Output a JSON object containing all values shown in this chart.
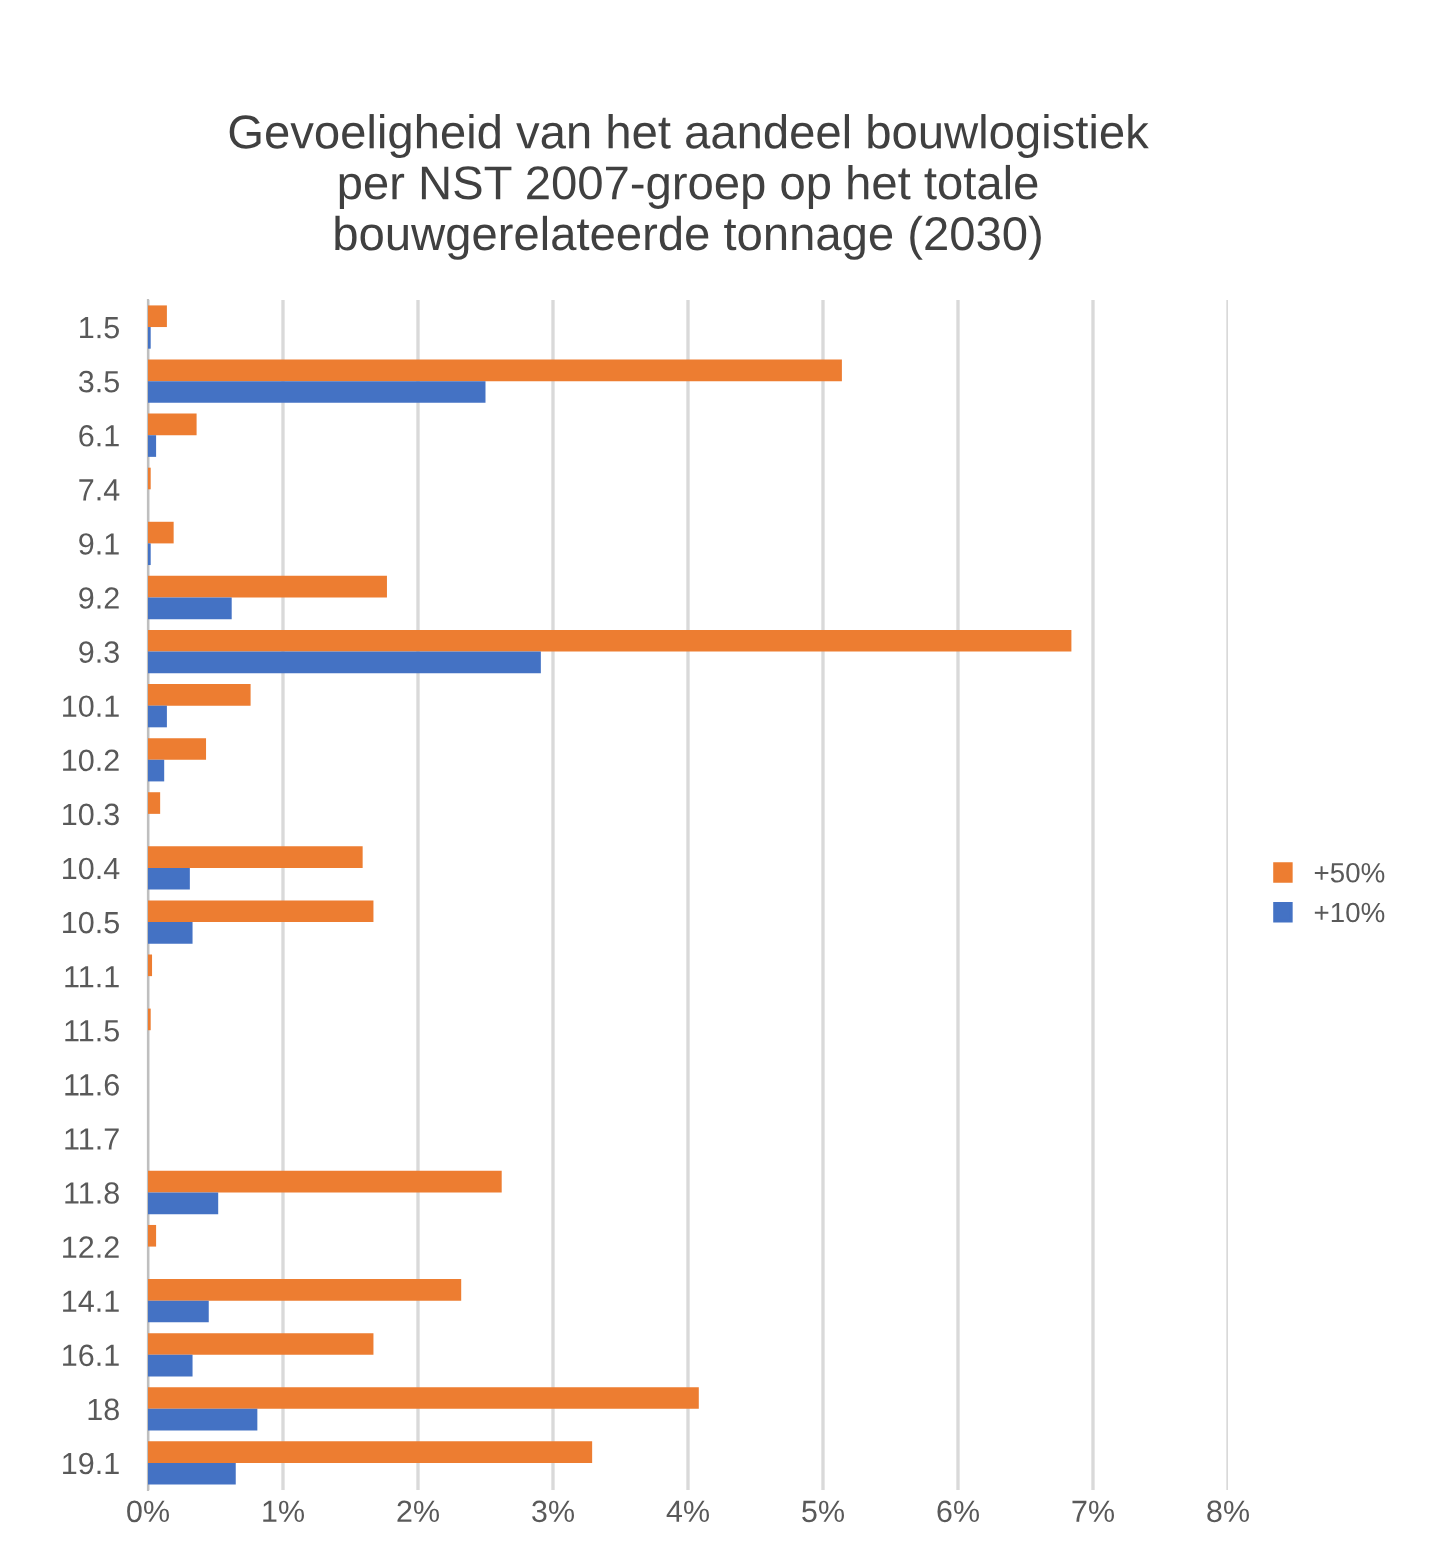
{
  "chart_data": {
    "type": "bar",
    "orientation": "horizontal",
    "title": "Gevoeligheid van het aandeel bouwlogistiek\nper NST 2007-groep op het totale\nbouwgerelateerde tonnage (2030)",
    "categories": [
      "1.5",
      "3.5",
      "6.1",
      "7.4",
      "9.1",
      "9.2",
      "9.3",
      "10.1",
      "10.2",
      "10.3",
      "10.4",
      "10.5",
      "11.1",
      "11.5",
      "11.6",
      "11.7",
      "11.8",
      "12.2",
      "14.1",
      "16.1",
      "18",
      "19.1"
    ],
    "series": [
      {
        "name": "+50%",
        "color": "#ed7d31",
        "values": [
          0.14,
          5.14,
          0.36,
          0.02,
          0.19,
          1.77,
          6.84,
          0.76,
          0.43,
          0.09,
          1.59,
          1.67,
          0.03,
          0.02,
          0,
          0,
          2.62,
          0.06,
          2.32,
          1.67,
          4.08,
          3.29
        ]
      },
      {
        "name": "+10%",
        "color": "#4472c4",
        "values": [
          0.02,
          2.5,
          0.06,
          0,
          0.02,
          0.62,
          2.91,
          0.14,
          0.12,
          0,
          0.31,
          0.33,
          0,
          0,
          0,
          0,
          0.52,
          0,
          0.45,
          0.33,
          0.81,
          0.65
        ]
      }
    ],
    "xlim": [
      0,
      8
    ],
    "xticks": [
      {
        "value": 0,
        "label": "0%"
      },
      {
        "value": 1,
        "label": "1%"
      },
      {
        "value": 2,
        "label": "2%"
      },
      {
        "value": 3,
        "label": "3%"
      },
      {
        "value": 4,
        "label": "4%"
      },
      {
        "value": 5,
        "label": "5%"
      },
      {
        "value": 6,
        "label": "6%"
      },
      {
        "value": 7,
        "label": "7%"
      },
      {
        "value": 8,
        "label": "8%"
      }
    ],
    "grid": "x",
    "legend": "right"
  }
}
